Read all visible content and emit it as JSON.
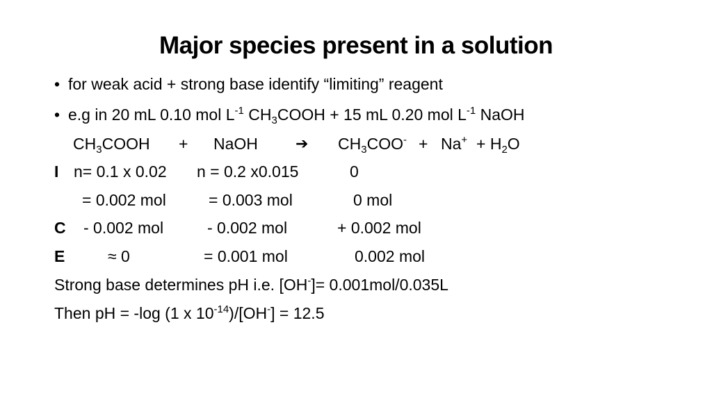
{
  "title": "Major species present in a solution",
  "bullets": [
    "for weak acid + strong base identify “limiting” reagent",
    "e.g in 20 mL 0.10 mol L-1 CH3COOH + 15 mL 0.20 mol L-1 NaOH"
  ],
  "bullet_char": "•",
  "ex": {
    "prefix": "e.g in 20 mL 0.10 mol L",
    "sup1": "-1",
    "mid1": " CH",
    "sub1": "3",
    "mid2": "COOH + 15 mL 0.20 mol L",
    "sup2": "-1",
    "end": " NaOH"
  },
  "reaction": {
    "r1a": "CH",
    "r1sub": "3",
    "r1b": "COOH",
    "plus1": "+",
    "r2": "NaOH",
    "arrow": "➔",
    "p1a": "CH",
    "p1sub": "3",
    "p1b": "COO",
    "p1sup": "-",
    "plus2": "+",
    "p2": "Na",
    "p2sup": "+",
    "plus3": "+ H",
    "p3sub": "2",
    "p3b": "O"
  },
  "ice": {
    "I": {
      "label": "I",
      "c1": "n= 0.1 x 0.02",
      "c2": "n = 0.2 x0.015",
      "c3": "0"
    },
    "I2": {
      "c1": "= 0.002 mol",
      "c2": "= 0.003 mol",
      "c3": "0 mol"
    },
    "C": {
      "label": "C",
      "c1": "- 0.002 mol",
      "c2": "- 0.002 mol",
      "c3": "+ 0.002 mol"
    },
    "E": {
      "label": "E",
      "c1": "≈ 0",
      "c2": "= 0.001 mol",
      "c3": "0.002 mol"
    }
  },
  "conclusion1": {
    "a": "Strong base determines pH i.e. [OH",
    "sup": "-",
    "b": "]= 0.001mol/0.035L"
  },
  "conclusion2": {
    "a": "Then pH = -log (1 x 10",
    "sup1": "-14",
    "b": ")/[OH",
    "sup2": "-",
    "c": "] = 12.5"
  }
}
